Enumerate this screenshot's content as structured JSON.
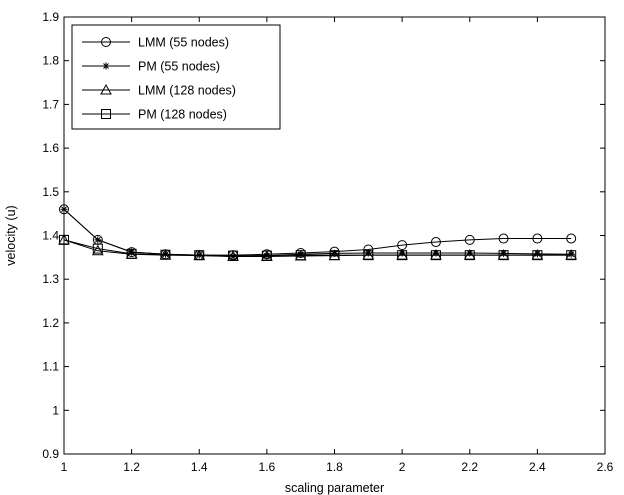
{
  "chart_data": {
    "type": "line",
    "xlabel": "scaling parameter",
    "ylabel": "velocity (u)",
    "xlim": [
      1,
      2.6
    ],
    "ylim": [
      0.9,
      1.9
    ],
    "xticks": [
      1,
      1.2,
      1.4,
      1.6,
      1.8,
      2,
      2.2,
      2.4,
      2.6
    ],
    "xtick_labels": [
      "1",
      "1.2",
      "1.4",
      "1.6",
      "1.8",
      "2",
      "2.2",
      "2.4",
      "2.6"
    ],
    "yticks": [
      0.9,
      1,
      1.1,
      1.2,
      1.3,
      1.4,
      1.5,
      1.6,
      1.7,
      1.8,
      1.9
    ],
    "ytick_labels": [
      "0.9",
      "1",
      "1.1",
      "1.2",
      "1.3",
      "1.4",
      "1.5",
      "1.6",
      "1.7",
      "1.8",
      "1.9"
    ],
    "grid": false,
    "legend_position": "top-left",
    "x": [
      1.0,
      1.1,
      1.2,
      1.3,
      1.4,
      1.5,
      1.6,
      1.7,
      1.8,
      1.9,
      2.0,
      2.1,
      2.2,
      2.3,
      2.4,
      2.5
    ],
    "series": [
      {
        "name": "LMM (55 nodes)",
        "marker": "circle",
        "color": "#000000",
        "values": [
          1.46,
          1.39,
          1.362,
          1.357,
          1.355,
          1.355,
          1.357,
          1.36,
          1.363,
          1.368,
          1.378,
          1.385,
          1.39,
          1.393,
          1.393,
          1.393
        ]
      },
      {
        "name": "PM (55 nodes)",
        "marker": "star",
        "color": "#000000",
        "values": [
          1.46,
          1.39,
          1.362,
          1.357,
          1.355,
          1.352,
          1.354,
          1.357,
          1.359,
          1.36,
          1.36,
          1.36,
          1.36,
          1.359,
          1.358,
          1.357
        ]
      },
      {
        "name": "LMM (128 nodes)",
        "marker": "triangle",
        "color": "#000000",
        "values": [
          1.39,
          1.365,
          1.357,
          1.355,
          1.354,
          1.352,
          1.352,
          1.353,
          1.354,
          1.355,
          1.355,
          1.355,
          1.355,
          1.355,
          1.355,
          1.355
        ]
      },
      {
        "name": "PM (128 nodes)",
        "marker": "square",
        "color": "#000000",
        "values": [
          1.39,
          1.37,
          1.358,
          1.356,
          1.355,
          1.354,
          1.354,
          1.355,
          1.355,
          1.355,
          1.355,
          1.355,
          1.355,
          1.355,
          1.355,
          1.355
        ]
      }
    ]
  }
}
